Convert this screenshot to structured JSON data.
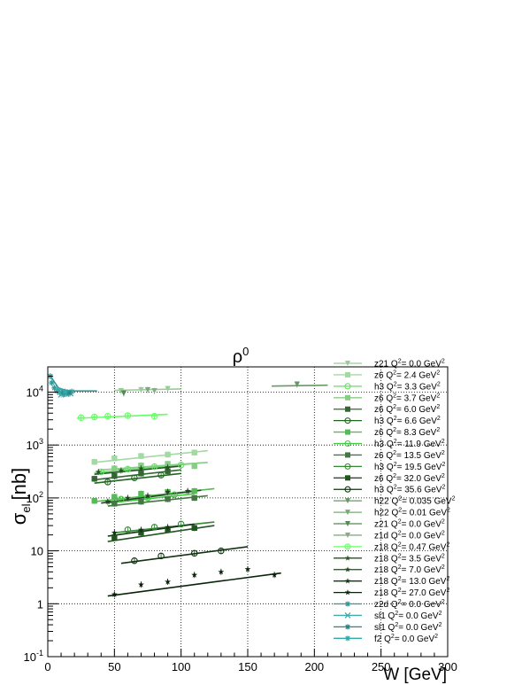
{
  "chart_data": {
    "type": "scatter",
    "title": "ρ⁰",
    "title_base": "ρ",
    "title_sup": "0",
    "xlabel": "W [GeV]",
    "ylabel_main": "σ",
    "ylabel_sub": "el",
    "ylabel_unit": "[nb]",
    "xlim": [
      0,
      300
    ],
    "ylim": [
      0.1,
      30000
    ],
    "y_scale": "log",
    "grid": true,
    "legend_position": "right",
    "x_ticks": [
      0,
      50,
      100,
      150,
      200,
      250,
      300
    ],
    "y_ticks": [
      {
        "value": 0.1,
        "base": "10",
        "exp": "-1"
      },
      {
        "value": 1,
        "base": "1",
        "exp": ""
      },
      {
        "value": 10,
        "base": "10",
        "exp": ""
      },
      {
        "value": 100,
        "base": "10",
        "exp": "2"
      },
      {
        "value": 1000,
        "base": "10",
        "exp": "3"
      },
      {
        "value": 10000,
        "base": "10",
        "exp": "4"
      }
    ],
    "series": [
      {
        "name": "z21 Q²= 0.0 GeV²",
        "exp": "z21",
        "q2": "0.0",
        "color": "#99cc99",
        "marker": "tri-down",
        "points": [
          [
            55,
            10500
          ],
          [
            70,
            11000
          ],
          [
            90,
            11500
          ]
        ],
        "fit": [
          [
            50,
            10800
          ],
          [
            100,
            11500
          ]
        ]
      },
      {
        "name": "z6 Q²= 2.4 GeV²",
        "exp": "z6",
        "q2": "2.4",
        "color": "#a3d9a3",
        "marker": "square",
        "points": [
          [
            35,
            480
          ],
          [
            50,
            560
          ],
          [
            70,
            620
          ],
          [
            90,
            660
          ],
          [
            110,
            720
          ]
        ],
        "fit": [
          [
            35,
            470
          ],
          [
            120,
            780
          ]
        ]
      },
      {
        "name": "h3 Q²= 3.3 GeV²",
        "exp": "h3",
        "q2": "3.3",
        "color": "#66dd66",
        "marker": "circle-open",
        "points": [
          [
            40,
            310
          ],
          [
            60,
            350
          ],
          [
            80,
            390
          ],
          [
            100,
            420
          ]
        ],
        "fit": [
          [
            35,
            300
          ],
          [
            115,
            460
          ]
        ]
      },
      {
        "name": "z6 Q²= 3.7 GeV²",
        "exp": "z6",
        "q2": "3.7",
        "color": "#88cc88",
        "marker": "square",
        "points": [
          [
            50,
            360
          ],
          [
            70,
            410
          ],
          [
            90,
            440
          ],
          [
            110,
            400
          ]
        ],
        "fit": [
          [
            40,
            340
          ],
          [
            120,
            470
          ]
        ]
      },
      {
        "name": "z6 Q²= 6.0 GeV²",
        "exp": "z6",
        "q2": "6.0",
        "color": "#336633",
        "marker": "square",
        "points": [
          [
            35,
            230
          ],
          [
            50,
            260
          ],
          [
            70,
            290
          ],
          [
            90,
            320
          ]
        ],
        "fit": [
          [
            35,
            220
          ],
          [
            100,
            340
          ]
        ]
      },
      {
        "name": "h3 Q²= 6.6 GeV²",
        "exp": "h3",
        "q2": "6.6",
        "color": "#226622",
        "marker": "circle-open",
        "points": [
          [
            45,
            200
          ],
          [
            65,
            240
          ],
          [
            85,
            270
          ]
        ],
        "fit": [
          [
            35,
            190
          ],
          [
            100,
            290
          ]
        ]
      },
      {
        "name": "z6 Q²= 8.3 GeV²",
        "exp": "z6",
        "q2": "8.3",
        "color": "#55bb55",
        "marker": "square",
        "points": [
          [
            35,
            88
          ],
          [
            50,
            105
          ],
          [
            70,
            120
          ],
          [
            90,
            130
          ],
          [
            110,
            135
          ]
        ],
        "fit": [
          [
            35,
            85
          ],
          [
            125,
            150
          ]
        ]
      },
      {
        "name": "h3 Q²= 11.9 GeV²",
        "exp": "h3",
        "q2": "11.9",
        "color": "#44cc44",
        "marker": "circle-open",
        "points": [
          [
            55,
            95
          ],
          [
            75,
            100
          ],
          [
            95,
            115
          ]
        ],
        "fit": [
          [
            45,
            80
          ],
          [
            110,
            120
          ]
        ]
      },
      {
        "name": "z6 Q²= 13.5 GeV²",
        "exp": "z6",
        "q2": "13.5",
        "color": "#447744",
        "marker": "square",
        "points": [
          [
            50,
            78
          ],
          [
            70,
            85
          ],
          [
            90,
            95
          ],
          [
            110,
            100
          ]
        ],
        "fit": [
          [
            45,
            70
          ],
          [
            120,
            110
          ]
        ]
      },
      {
        "name": "h3 Q²= 19.5 GeV²",
        "exp": "h3",
        "q2": "19.5",
        "color": "#338833",
        "marker": "circle-open",
        "points": [
          [
            60,
            25
          ],
          [
            80,
            28
          ],
          [
            100,
            32
          ]
        ],
        "fit": [
          [
            50,
            22
          ],
          [
            125,
            35
          ]
        ]
      },
      {
        "name": "z6 Q²= 32.0 GeV²",
        "exp": "z6",
        "q2": "32.0",
        "color": "#225522",
        "marker": "square",
        "points": [
          [
            50,
            18
          ],
          [
            70,
            22
          ],
          [
            90,
            25
          ],
          [
            110,
            27
          ]
        ],
        "fit": [
          [
            45,
            15
          ],
          [
            125,
            30
          ]
        ]
      },
      {
        "name": "h3 Q²= 35.6 GeV²",
        "exp": "h3",
        "q2": "35.6",
        "color": "#113311",
        "marker": "circle-open",
        "points": [
          [
            65,
            6.5
          ],
          [
            85,
            8
          ],
          [
            110,
            9
          ],
          [
            130,
            10
          ]
        ],
        "fit": [
          [
            55,
            5.8
          ],
          [
            150,
            12
          ]
        ]
      },
      {
        "name": "h22 Q²= 0.035 GeV²",
        "exp": "h22",
        "q2": "0.035",
        "color": "#669966",
        "marker": "tri-down",
        "points": [
          [
            187,
            14000
          ]
        ],
        "fit": [
          [
            168,
            13000
          ],
          [
            210,
            13500
          ]
        ]
      },
      {
        "name": "h22 Q²= 0.01 GeV²",
        "exp": "h22",
        "q2": "0.01",
        "color": "#77aa77",
        "marker": "tri-down",
        "points": [
          [
            75,
            11000
          ]
        ],
        "fit": []
      },
      {
        "name": "z21 Q²= 0.0 GeV²",
        "exp": "z21",
        "q2": "0.0",
        "color": "#558855",
        "marker": "tri-down",
        "points": [
          [
            57,
            9500
          ]
        ],
        "fit": []
      },
      {
        "name": "z1d Q²= 0.0 GeV²",
        "exp": "z1d",
        "q2": "0.0",
        "color": "#88aa88",
        "marker": "tri-down",
        "points": [
          [
            80,
            10500
          ]
        ],
        "fit": []
      },
      {
        "name": "z18 Q²= 0.47 GeV²",
        "exp": "z18",
        "q2": "0.47",
        "color": "#66ff66",
        "marker": "circle-cross",
        "points": [
          [
            25,
            3300
          ],
          [
            35,
            3400
          ],
          [
            45,
            3500
          ],
          [
            60,
            3600
          ],
          [
            80,
            3500
          ]
        ],
        "fit": [
          [
            22,
            3200
          ],
          [
            90,
            3800
          ]
        ]
      },
      {
        "name": "z18 Q²= 3.5 GeV²",
        "exp": "z18",
        "q2": "3.5",
        "color": "#225522",
        "marker": "star",
        "points": [
          [
            38,
            310
          ],
          [
            55,
            330
          ],
          [
            70,
            360
          ],
          [
            90,
            380
          ]
        ],
        "fit": [
          [
            35,
            280
          ],
          [
            100,
            400
          ]
        ]
      },
      {
        "name": "z18 Q²= 7.0 GeV²",
        "exp": "z18",
        "q2": "7.0",
        "color": "#224422",
        "marker": "star",
        "points": [
          [
            45,
            85
          ],
          [
            60,
            100
          ],
          [
            75,
            110
          ],
          [
            90,
            130
          ],
          [
            105,
            135
          ]
        ],
        "fit": [
          [
            40,
            80
          ],
          [
            115,
            140
          ]
        ]
      },
      {
        "name": "z18 Q²= 13.0 GeV²",
        "exp": "z18",
        "q2": "13.0",
        "color": "#113311",
        "marker": "star",
        "points": [
          [
            50,
            22
          ],
          [
            70,
            25
          ],
          [
            90,
            28
          ]
        ],
        "fit": [
          [
            45,
            19
          ],
          [
            110,
            32
          ]
        ]
      },
      {
        "name": "z18 Q²= 27.0 GeV²",
        "exp": "z18",
        "q2": "27.0",
        "color": "#0a220a",
        "marker": "star",
        "points": [
          [
            50,
            1.5
          ],
          [
            70,
            2.3
          ],
          [
            90,
            2.6
          ],
          [
            110,
            3.5
          ],
          [
            130,
            4.0
          ],
          [
            150,
            4.5
          ],
          [
            170,
            3.5
          ]
        ],
        "fit": [
          [
            45,
            1.4
          ],
          [
            175,
            3.8
          ]
        ]
      },
      {
        "name": "z2d Q²= 0.0 GeV²",
        "exp": "z2d",
        "q2": "0.0",
        "color": "#339999",
        "marker": "star-x",
        "points": [
          [
            2,
            20000
          ],
          [
            3,
            15000
          ],
          [
            5,
            12000
          ],
          [
            7,
            10500
          ],
          [
            9,
            9800
          ],
          [
            11,
            9500
          ],
          [
            13,
            9300
          ],
          [
            15,
            9800
          ],
          [
            18,
            10200
          ]
        ],
        "fit": [
          [
            2,
            20000
          ],
          [
            8,
            12000
          ],
          [
            15,
            10500
          ],
          [
            37,
            10500
          ]
        ]
      },
      {
        "name": "sl1 Q²= 0.0 GeV²",
        "exp": "sl1",
        "q2": "0.0",
        "color": "#44aaaa",
        "marker": "x",
        "points": [
          [
            10,
            9000
          ],
          [
            14,
            9200
          ],
          [
            17,
            9500
          ]
        ],
        "fit": []
      },
      {
        "name": "sl1 Q²= 0.0 GeV²",
        "exp": "sl1",
        "q2": "0.0",
        "color": "#228888",
        "marker": "star-x",
        "points": [
          [
            12,
            10000
          ],
          [
            16,
            9700
          ]
        ],
        "fit": []
      },
      {
        "name": "f2 Q²= 0.0 GeV²",
        "exp": "f2",
        "q2": "0.0",
        "color": "#33aaaa",
        "marker": "star-x",
        "points": [
          [
            8,
            11000
          ],
          [
            13,
            10200
          ]
        ],
        "fit": []
      }
    ]
  }
}
